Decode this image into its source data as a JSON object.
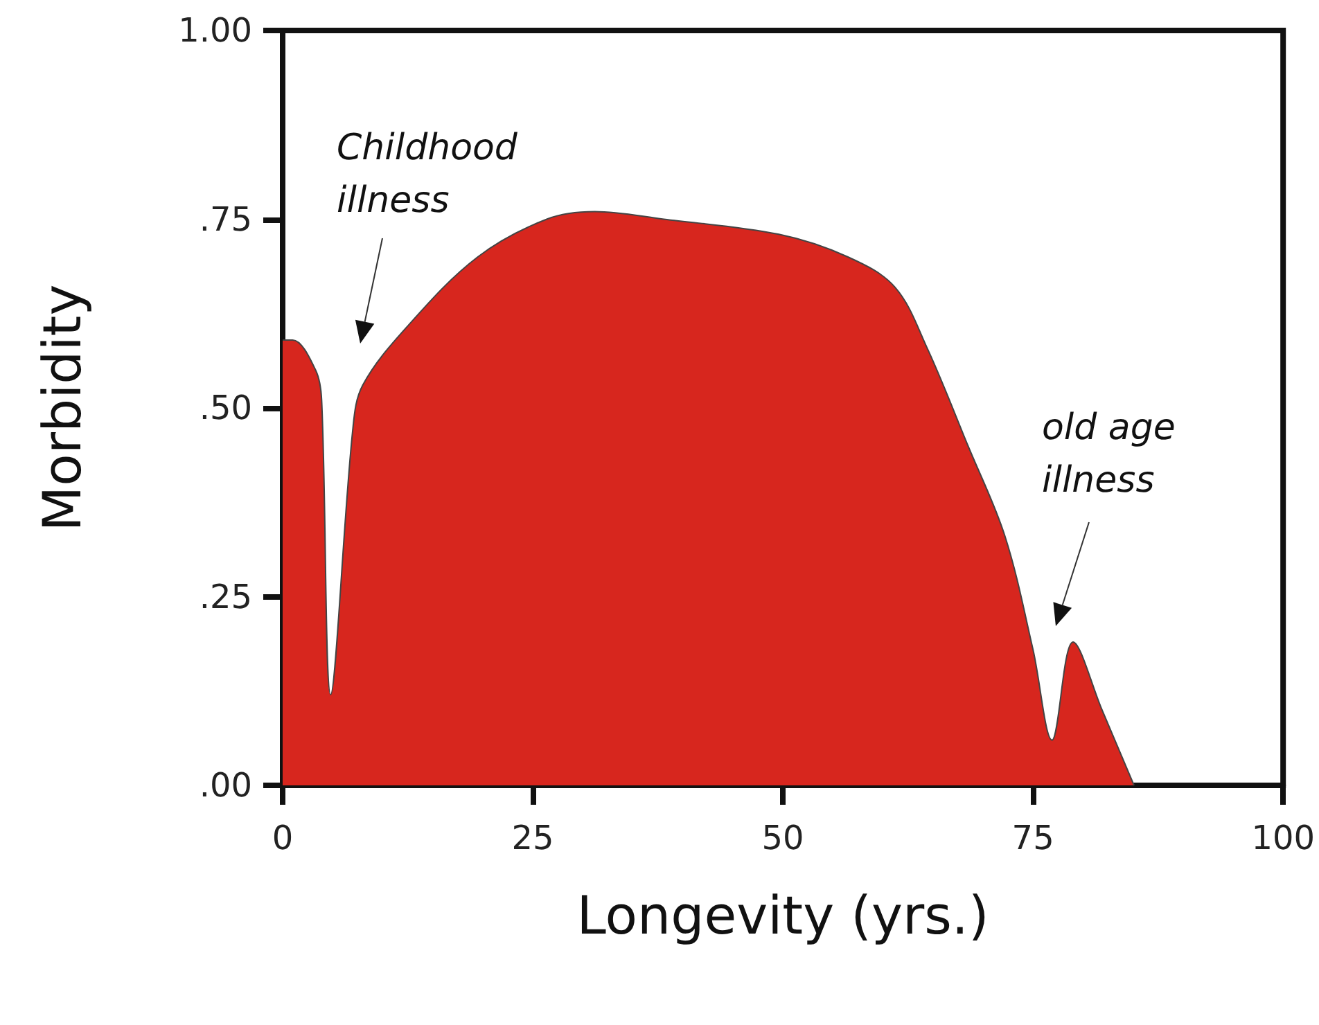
{
  "chart_data": {
    "type": "area",
    "xlabel": "Longevity (yrs.)",
    "ylabel": "Morbidity",
    "x": [
      0,
      1,
      3.3,
      3.9,
      4.8,
      7,
      8,
      12.6,
      19.5,
      26.4,
      31.2,
      38.1,
      49.6,
      56.5,
      61.2,
      64.4,
      68.5,
      72.2,
      75,
      76.9,
      79,
      81.9,
      85.1
    ],
    "series": [
      {
        "color": "#d7261e",
        "values": [
          0.59,
          0.59,
          0.55,
          0.51,
          0.12,
          0.47,
          0.53,
          0.61,
          0.7,
          0.75,
          0.76,
          0.75,
          0.73,
          0.7,
          0.66,
          0.58,
          0.45,
          0.33,
          0.18,
          0.06,
          0.19,
          0.1,
          0
        ]
      }
    ],
    "xlim": [
      0,
      100
    ],
    "xticks": [
      0,
      25,
      50,
      75,
      100
    ],
    "ylim": [
      0,
      1
    ],
    "yticks": [
      {
        "value": 0,
        "label": ".00"
      },
      {
        "value": 0.25,
        "label": ".25"
      },
      {
        "value": 0.5,
        "label": ".50"
      },
      {
        "value": 0.75,
        "label": ".75"
      },
      {
        "value": 1,
        "label": "1.00"
      }
    ],
    "grid": false,
    "annotations": [
      "Childhood illness",
      "old age illness"
    ]
  }
}
